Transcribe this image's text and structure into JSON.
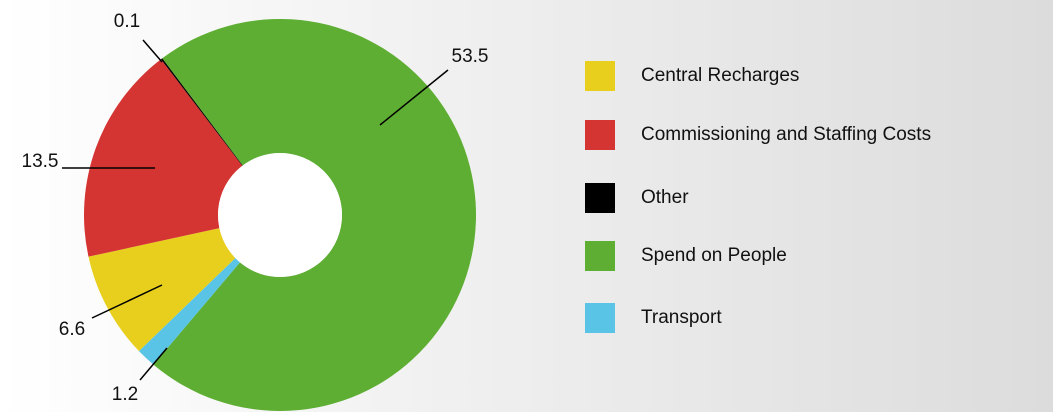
{
  "chart_data": {
    "type": "donut",
    "categories": [
      "Central Recharges",
      "Commissioning and Staffing Costs",
      "Other",
      "Spend on People",
      "Transport"
    ],
    "values": [
      6.6,
      13.5,
      0.1,
      53.5,
      1.2
    ],
    "colors": [
      "#e8cf1e",
      "#d43432",
      "#000000",
      "#5dae32",
      "#5ac4e6"
    ],
    "legend": "right"
  }
}
